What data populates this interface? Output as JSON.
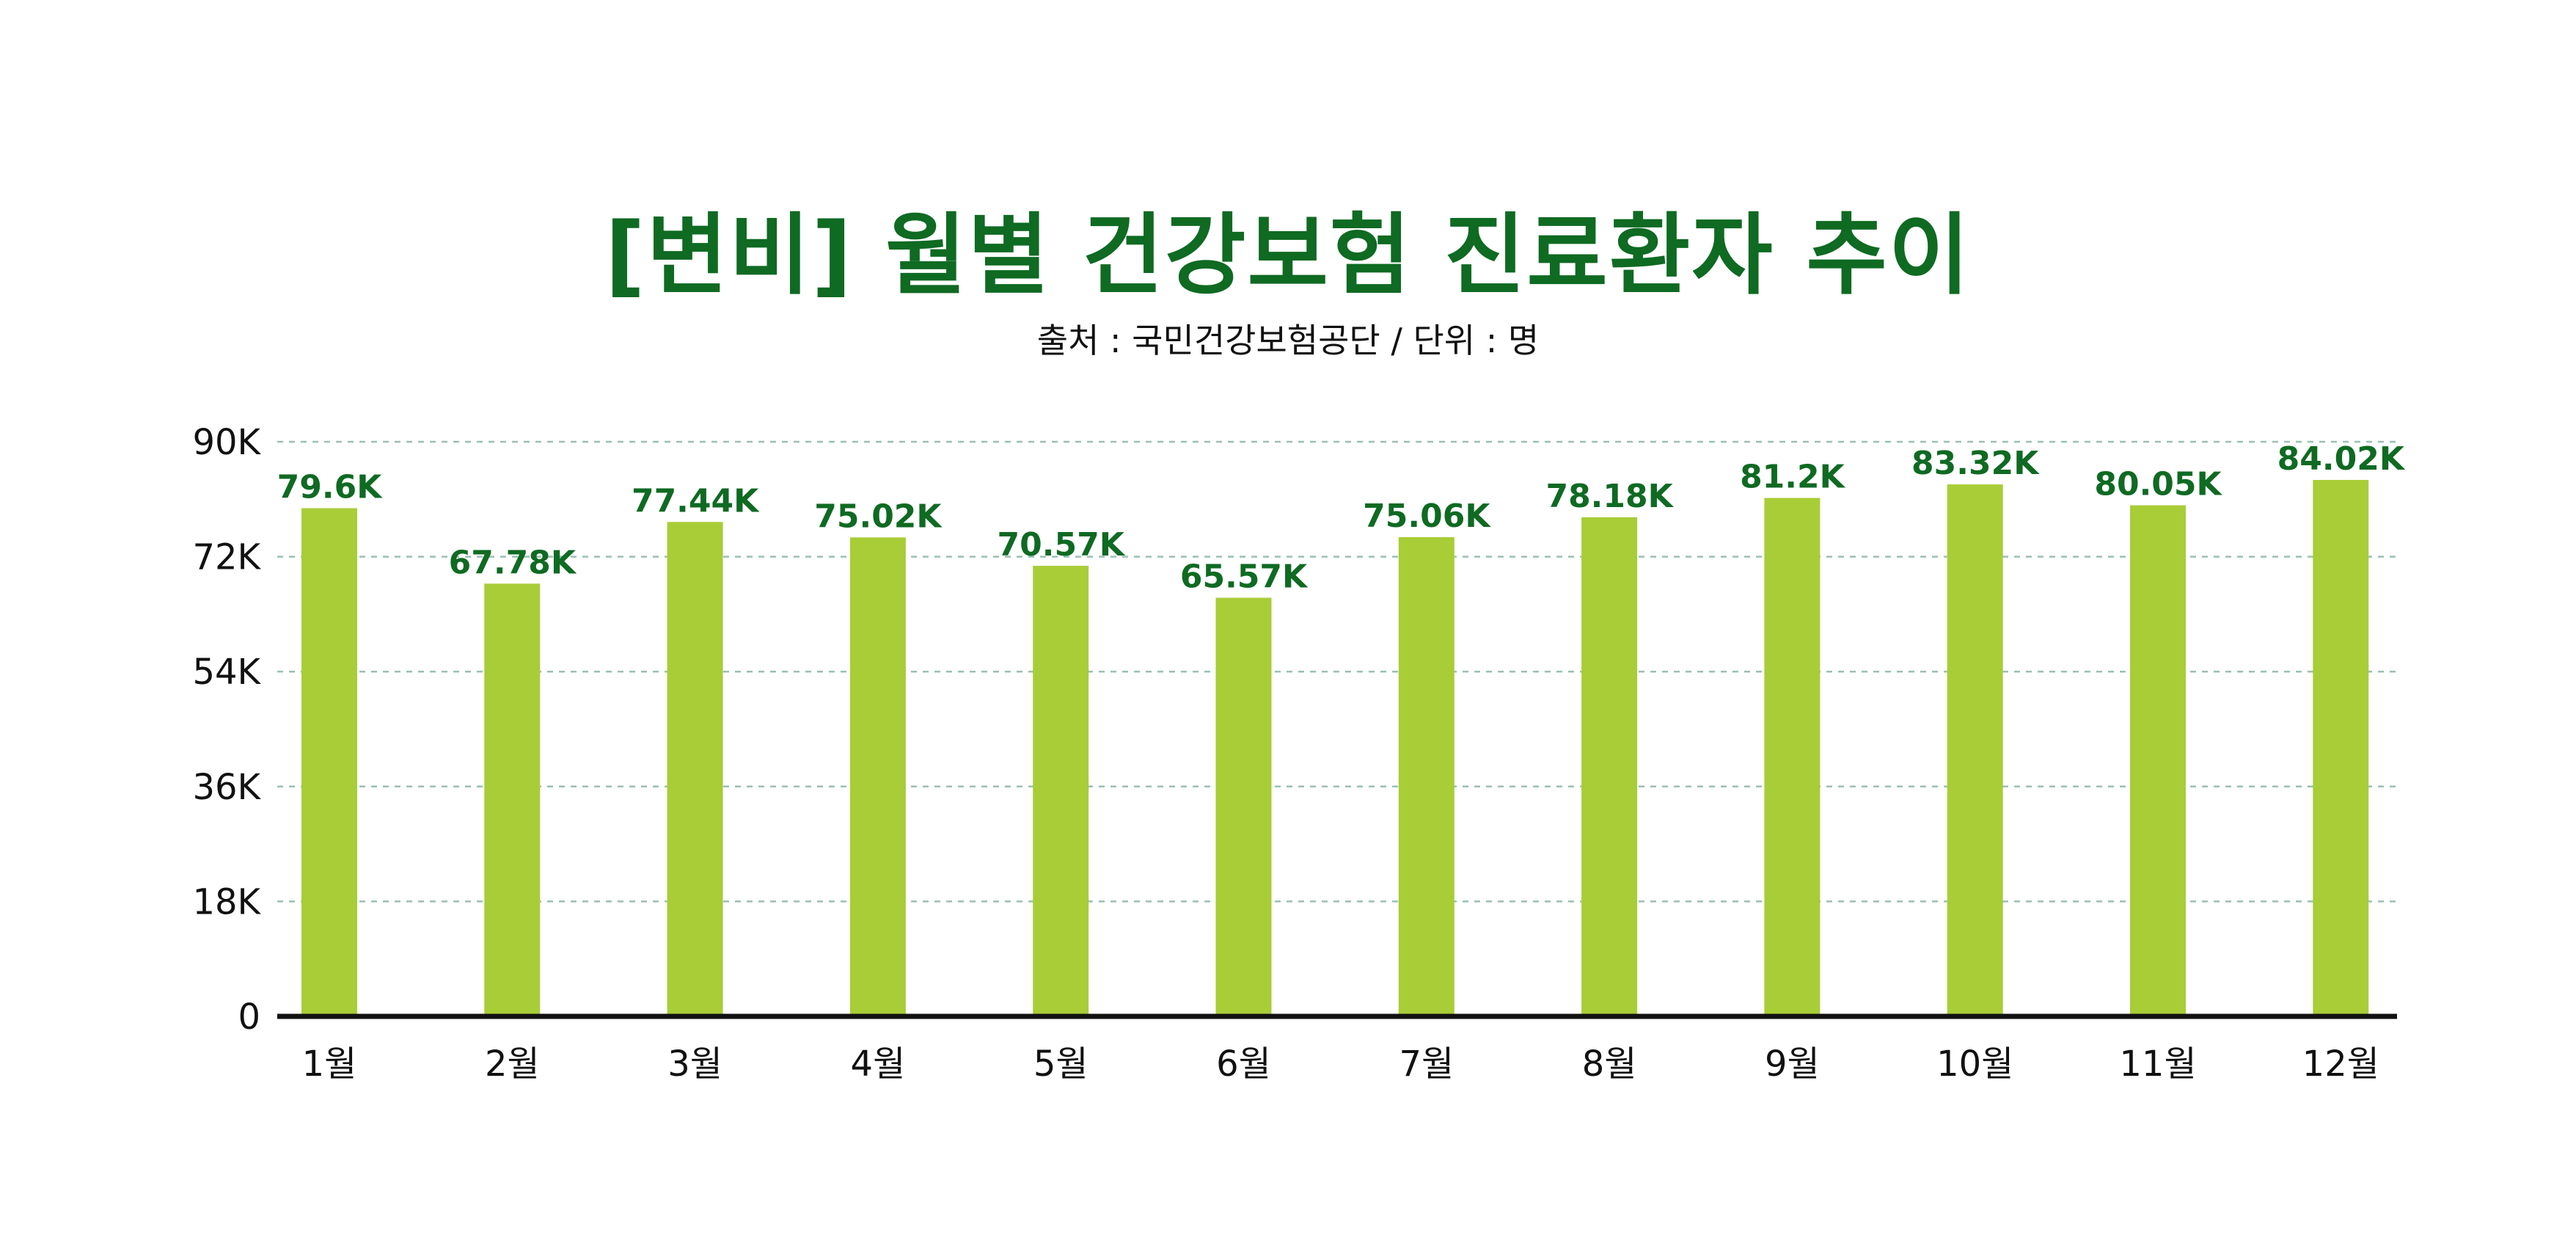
{
  "title": "[변비] 월별 건강보험 진료환자 추이",
  "subtitle": "출처 : 국민건강보험공단 / 단위 : 명",
  "colors": {
    "title": "#0f6a22",
    "bar": "#a8cd37",
    "data_label": "#0f6a22",
    "grid": "#9bbfb4",
    "axis": "#111111"
  },
  "chart_data": {
    "type": "bar",
    "title": "[변비] 월별 건강보험 진료환자 추이",
    "subtitle": "출처 : 국민건강보험공단 / 단위 : 명",
    "xlabel": "",
    "ylabel": "",
    "categories": [
      "1월",
      "2월",
      "3월",
      "4월",
      "5월",
      "6월",
      "7월",
      "8월",
      "9월",
      "10월",
      "11월",
      "12월"
    ],
    "values": [
      79600,
      67780,
      77440,
      75020,
      70570,
      65570,
      75060,
      78180,
      81200,
      83320,
      80050,
      84020
    ],
    "data_labels": [
      "79.6K",
      "67.78K",
      "77.44K",
      "75.02K",
      "70.57K",
      "65.57K",
      "75.06K",
      "78.18K",
      "81.2K",
      "83.32K",
      "80.05K",
      "84.02K"
    ],
    "ylim": [
      0,
      90000
    ],
    "yticks": [
      0,
      18000,
      36000,
      54000,
      72000,
      90000
    ],
    "ytick_labels": [
      "0",
      "18K",
      "36K",
      "54K",
      "72K",
      "90K"
    ],
    "grid": true,
    "legend": "none"
  }
}
